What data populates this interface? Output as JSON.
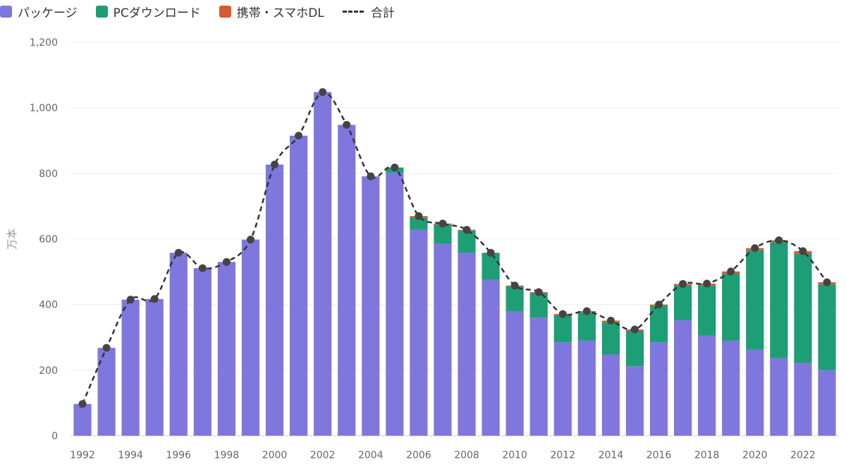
{
  "chart_data": {
    "type": "bar",
    "stacked": true,
    "ylabel": "万本",
    "ylim": [
      0,
      1200
    ],
    "yticks": [
      0,
      200,
      400,
      600,
      800,
      1000,
      1200
    ],
    "ytick_labels": [
      "0",
      "200",
      "400",
      "600",
      "800",
      "1,000",
      "1,200"
    ],
    "xtick_labels": [
      "1992",
      "1994",
      "1996",
      "1998",
      "2000",
      "2002",
      "2004",
      "2006",
      "2008",
      "2010",
      "2012",
      "2014",
      "2016",
      "2018",
      "2020",
      "2022"
    ],
    "grid": true,
    "legend_position": "top-left",
    "categories": [
      1992,
      1993,
      1994,
      1995,
      1996,
      1997,
      1998,
      1999,
      2000,
      2001,
      2002,
      2003,
      2004,
      2005,
      2006,
      2007,
      2008,
      2009,
      2010,
      2011,
      2012,
      2013,
      2014,
      2015,
      2016,
      2017,
      2018,
      2019,
      2020,
      2021,
      2022,
      2023
    ],
    "series": [
      {
        "name": "パッケージ",
        "color": "#7f77dd",
        "values": [
          97,
          268,
          415,
          417,
          558,
          511,
          530,
          598,
          827,
          915,
          1048,
          948,
          791,
          802,
          628,
          586,
          558,
          475,
          380,
          360,
          285,
          290,
          248,
          212,
          285,
          352,
          305,
          290,
          262,
          237,
          222,
          200
        ]
      },
      {
        "name": "PCダウンロード",
        "color": "#1d9e75",
        "values": [
          0,
          0,
          0,
          0,
          0,
          0,
          0,
          0,
          0,
          0,
          0,
          0,
          0,
          16,
          38,
          58,
          68,
          82,
          76,
          76,
          82,
          86,
          98,
          108,
          110,
          106,
          154,
          205,
          303,
          353,
          333,
          262
        ]
      },
      {
        "name": "携帯・スマホDL",
        "color": "#d85a30",
        "values": [
          0,
          0,
          0,
          0,
          0,
          0,
          0,
          0,
          0,
          0,
          0,
          0,
          0,
          0,
          4,
          3,
          2,
          1,
          2,
          2,
          4,
          4,
          5,
          4,
          5,
          5,
          5,
          6,
          7,
          6,
          8,
          6
        ]
      }
    ],
    "line": {
      "name": "合計",
      "style": "dashed",
      "color": "#333333",
      "values": [
        97,
        268,
        415,
        417,
        558,
        511,
        530,
        598,
        827,
        915,
        1048,
        948,
        791,
        818,
        670,
        647,
        628,
        558,
        458,
        438,
        371,
        380,
        351,
        324,
        400,
        463,
        464,
        501,
        572,
        596,
        563,
        468
      ]
    }
  }
}
